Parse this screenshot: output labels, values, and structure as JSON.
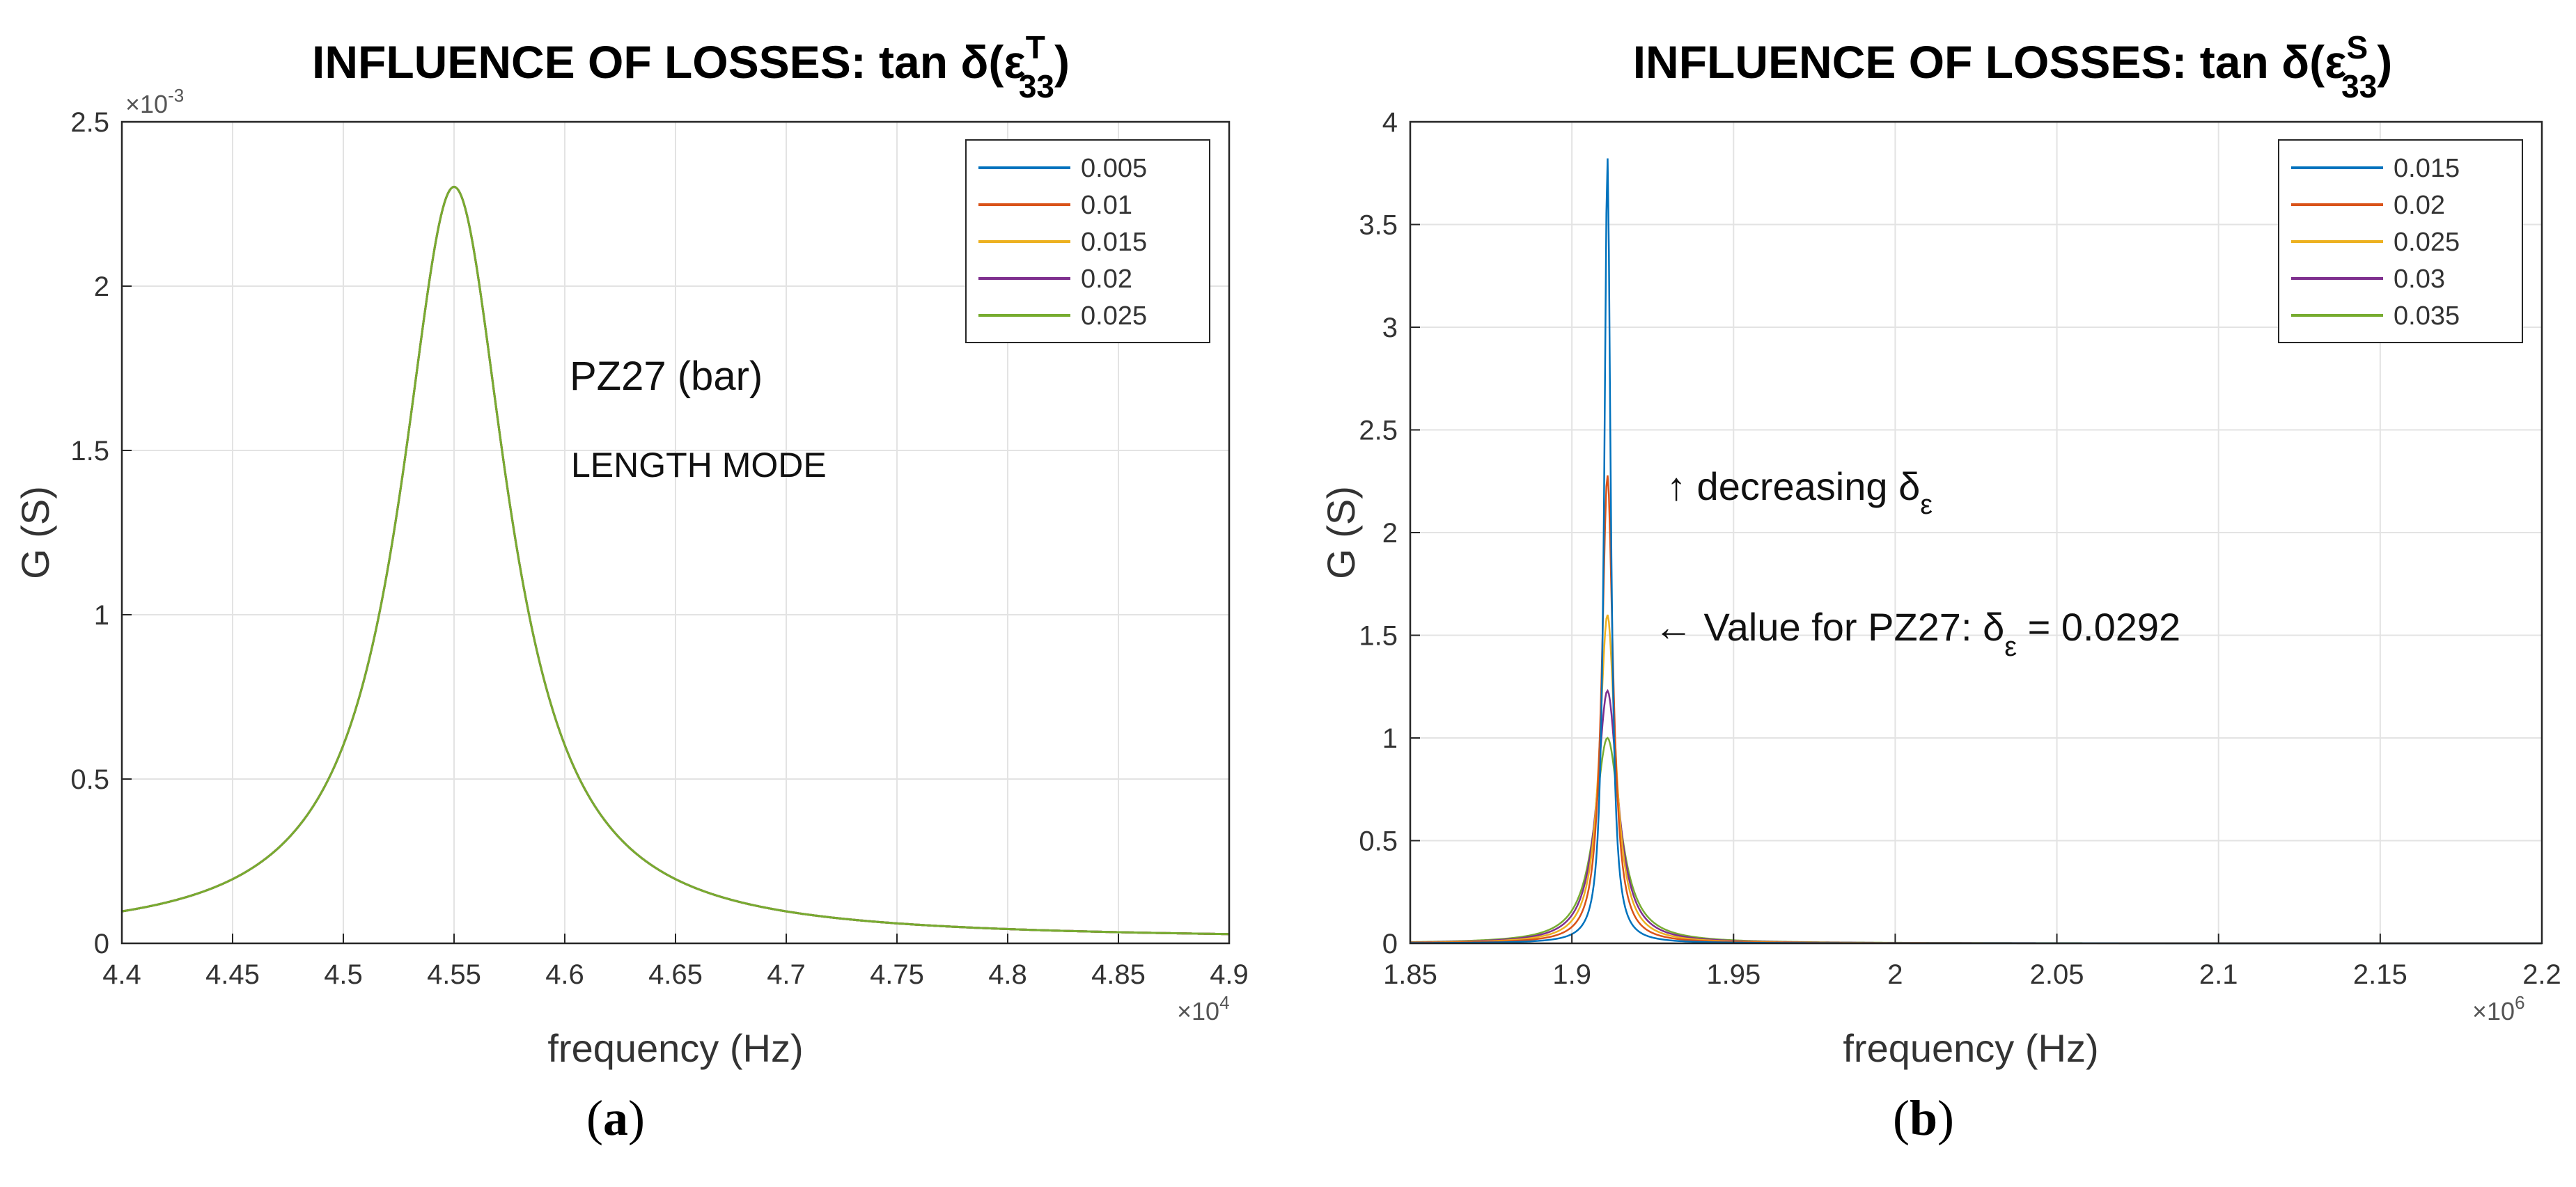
{
  "chart_data": [
    {
      "type": "line",
      "title_prefix": "INFLUENCE OF LOSSES: tan δ(ε",
      "title_superscript": "T",
      "title_subscript": "33",
      "title_suffix": ")",
      "xlabel": "frequency (Hz)",
      "ylabel": "G (S)",
      "x_exponent_label": "×10",
      "x_exponent": "4",
      "y_exponent_label": "×10",
      "y_exponent": "-3",
      "xlim": [
        4.4,
        4.9
      ],
      "ylim": [
        0,
        2.5
      ],
      "xticks": [
        4.4,
        4.45,
        4.5,
        4.55,
        4.6,
        4.65,
        4.7,
        4.75,
        4.8,
        4.85,
        4.9
      ],
      "xtick_labels": [
        "4.4",
        "4.45",
        "4.5",
        "4.55",
        "4.6",
        "4.65",
        "4.7",
        "4.75",
        "4.8",
        "4.85",
        "4.9"
      ],
      "yticks": [
        0,
        0.5,
        1,
        1.5,
        2,
        2.5
      ],
      "ytick_labels": [
        "0",
        "0.5",
        "1",
        "1.5",
        "2",
        "2.5"
      ],
      "grid": true,
      "legend_position": "top-right",
      "annotations": [
        "PZ27 (bar)",
        "LENGTH MODE"
      ],
      "peak": {
        "f0": 4.55,
        "height": 2.29,
        "half_width": 0.0295
      },
      "series": [
        {
          "name": "0.005",
          "color": "#0072BD",
          "peak_height": 2.29
        },
        {
          "name": "0.01",
          "color": "#D95319",
          "peak_height": 2.29
        },
        {
          "name": "0.015",
          "color": "#EDB120",
          "peak_height": 2.29
        },
        {
          "name": "0.02",
          "color": "#7E2F8E",
          "peak_height": 2.29
        },
        {
          "name": "0.025",
          "color": "#77AC30",
          "peak_height": 2.29
        }
      ],
      "caption": "a"
    },
    {
      "type": "line",
      "title_prefix": "INFLUENCE OF LOSSES: tan δ(ε",
      "title_superscript": "S",
      "title_subscript": "33",
      "title_suffix": ")",
      "xlabel": "frequency (Hz)",
      "ylabel": "G (S)",
      "x_exponent_label": "×10",
      "x_exponent": "6",
      "xlim": [
        1.85,
        2.2
      ],
      "ylim": [
        0,
        4
      ],
      "xticks": [
        1.85,
        1.9,
        1.95,
        2,
        2.05,
        2.1,
        2.15,
        2.2
      ],
      "xtick_labels": [
        "1.85",
        "1.9",
        "1.95",
        "2",
        "2.05",
        "2.1",
        "2.15",
        "2.2"
      ],
      "yticks": [
        0,
        0.5,
        1,
        1.5,
        2,
        2.5,
        3,
        3.5,
        4
      ],
      "ytick_labels": [
        "0",
        "0.5",
        "1",
        "1.5",
        "2",
        "2.5",
        "3",
        "3.5",
        "4"
      ],
      "grid": true,
      "legend_position": "top-right",
      "annotations": [
        {
          "text": "↑ decreasing δ",
          "subscript": "ε"
        },
        {
          "text": "← Value for PZ27: δ",
          "subscript": "ε",
          "suffix": " = 0.0292"
        }
      ],
      "peak_f0": 1.911,
      "series": [
        {
          "name": "0.015",
          "color": "#0072BD",
          "peak_height": 3.83,
          "half_width": 0.0012
        },
        {
          "name": "0.02",
          "color": "#D95319",
          "peak_height": 2.28,
          "half_width": 0.0021
        },
        {
          "name": "0.025",
          "color": "#EDB120",
          "peak_height": 1.6,
          "half_width": 0.003
        },
        {
          "name": "0.03",
          "color": "#7E2F8E",
          "peak_height": 1.23,
          "half_width": 0.0039
        },
        {
          "name": "0.035",
          "color": "#77AC30",
          "peak_height": 1.0,
          "half_width": 0.0048
        }
      ],
      "caption": "b"
    }
  ]
}
